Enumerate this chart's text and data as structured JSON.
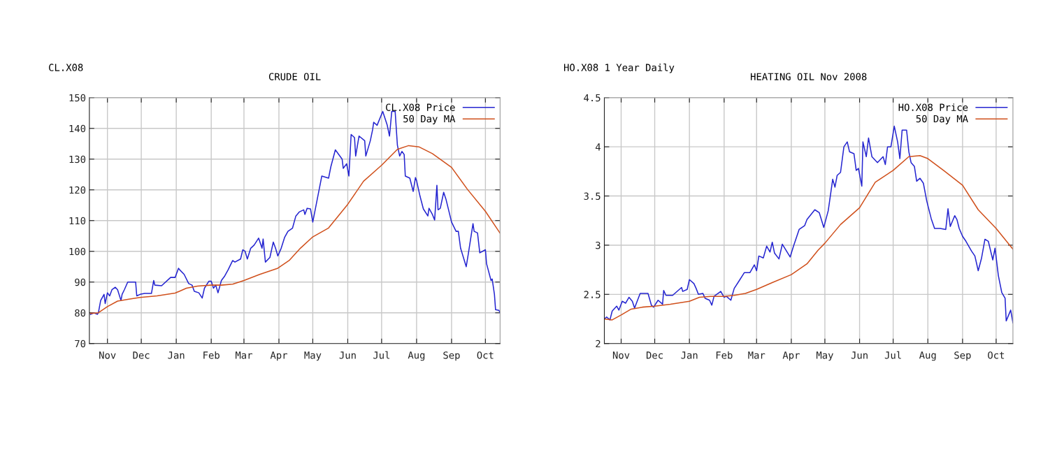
{
  "chart_data": [
    {
      "type": "line",
      "title": "CRUDE OIL",
      "annotations": [
        "CL.X08"
      ],
      "xlim": [
        "2007-10-16",
        "2008-10-14"
      ],
      "ylim": [
        70,
        150
      ],
      "yticks": [
        70,
        80,
        90,
        100,
        110,
        120,
        130,
        140,
        150
      ],
      "xticks": [
        {
          "value": "2007-11-01",
          "label": "Nov"
        },
        {
          "value": "2007-12-01",
          "label": "Dec"
        },
        {
          "value": "2008-01-01",
          "label": "Jan"
        },
        {
          "value": "2008-02-01",
          "label": "Feb"
        },
        {
          "value": "2008-03-01",
          "label": "Mar"
        },
        {
          "value": "2008-04-01",
          "label": "Apr"
        },
        {
          "value": "2008-05-01",
          "label": "May"
        },
        {
          "value": "2008-06-01",
          "label": "Jun"
        },
        {
          "value": "2008-07-01",
          "label": "Jul"
        },
        {
          "value": "2008-08-01",
          "label": "Aug"
        },
        {
          "value": "2008-09-01",
          "label": "Sep"
        },
        {
          "value": "2008-10-01",
          "label": "Oct"
        }
      ],
      "grid": true,
      "legend": "top right",
      "series": [
        {
          "name": "CL.X08 Price",
          "color": "#2424d0",
          "x": [
            "2007-10-17",
            "2007-10-20",
            "2007-10-23",
            "2007-10-24",
            "2007-10-26",
            "2007-10-29",
            "2007-10-30",
            "2007-11-01",
            "2007-11-03",
            "2007-11-05",
            "2007-11-08",
            "2007-11-10",
            "2007-11-13",
            "2007-11-14",
            "2007-11-16",
            "2007-11-19",
            "2007-11-26",
            "2007-11-27",
            "2007-11-30",
            "2007-12-04",
            "2007-12-10",
            "2007-12-12",
            "2007-12-13",
            "2007-12-19",
            "2007-12-27",
            "2007-12-31",
            "2008-01-03",
            "2008-01-04",
            "2008-01-08",
            "2008-01-12",
            "2008-01-15",
            "2008-01-17",
            "2008-01-21",
            "2008-01-24",
            "2008-01-26",
            "2008-01-30",
            "2008-02-01",
            "2008-02-03",
            "2008-02-05",
            "2008-02-07",
            "2008-02-10",
            "2008-02-13",
            "2008-02-16",
            "2008-02-20",
            "2008-02-22",
            "2008-02-27",
            "2008-02-29",
            "2008-03-02",
            "2008-03-04",
            "2008-03-07",
            "2008-03-10",
            "2008-03-14",
            "2008-03-17",
            "2008-03-18",
            "2008-03-20",
            "2008-03-24",
            "2008-03-27",
            "2008-03-29",
            "2008-03-31",
            "2008-04-03",
            "2008-04-06",
            "2008-04-09",
            "2008-04-13",
            "2008-04-16",
            "2008-04-19",
            "2008-04-23",
            "2008-04-24",
            "2008-04-26",
            "2008-04-29",
            "2008-05-01",
            "2008-05-05",
            "2008-05-09",
            "2008-05-15",
            "2008-05-17",
            "2008-05-21",
            "2008-05-27",
            "2008-05-28",
            "2008-05-31",
            "2008-06-02",
            "2008-06-04",
            "2008-06-07",
            "2008-06-08",
            "2008-06-11",
            "2008-06-16",
            "2008-06-17",
            "2008-06-21",
            "2008-06-23",
            "2008-06-24",
            "2008-06-27",
            "2008-07-02",
            "2008-07-06",
            "2008-07-08",
            "2008-07-10",
            "2008-07-13",
            "2008-07-15",
            "2008-07-17",
            "2008-07-19",
            "2008-07-21",
            "2008-07-22",
            "2008-07-26",
            "2008-07-29",
            "2008-07-31",
            "2008-08-01",
            "2008-08-04",
            "2008-08-07",
            "2008-08-11",
            "2008-08-12",
            "2008-08-15",
            "2008-08-17",
            "2008-08-19",
            "2008-08-20",
            "2008-08-22",
            "2008-08-25",
            "2008-08-27",
            "2008-09-01",
            "2008-09-05",
            "2008-09-07",
            "2008-09-09",
            "2008-09-14",
            "2008-09-16",
            "2008-09-20",
            "2008-09-21",
            "2008-09-24",
            "2008-09-26",
            "2008-10-01",
            "2008-10-02",
            "2008-10-06",
            "2008-10-07",
            "2008-10-09",
            "2008-10-10",
            "2008-10-13",
            "2008-10-14"
          ],
          "values": [
            79.5,
            80,
            79.5,
            80,
            84,
            86,
            83,
            86.5,
            85.5,
            87.5,
            88.3,
            87.5,
            84,
            86,
            87.5,
            90,
            90,
            85.5,
            86,
            86.3,
            86.3,
            90.5,
            89,
            88.8,
            91.5,
            91.5,
            94.5,
            94,
            92.5,
            89.5,
            89,
            87,
            86.5,
            84.8,
            88,
            90.3,
            90.3,
            88,
            89,
            86.5,
            90.5,
            92,
            94,
            97,
            96.5,
            97.5,
            100.5,
            100,
            97.5,
            101,
            102,
            104.3,
            101,
            104,
            96.5,
            98,
            103,
            101,
            98.5,
            101,
            104.5,
            106.5,
            107.5,
            111.5,
            112.8,
            113.5,
            112,
            114,
            113.8,
            109.5,
            117,
            124.5,
            123.8,
            127.5,
            133,
            130,
            127,
            128.5,
            124.5,
            138,
            137,
            131,
            137.5,
            136,
            131,
            136,
            139.5,
            142,
            141,
            145.5,
            141,
            137.5,
            145.5,
            145.5,
            134.5,
            131,
            132.5,
            131.5,
            124.5,
            123.8,
            119.5,
            124,
            123,
            118,
            113.8,
            111.5,
            114,
            112,
            110.2,
            121.5,
            113.5,
            114,
            119.2,
            117,
            109.5,
            106.5,
            106.5,
            101,
            95,
            99.5,
            109,
            106.5,
            106,
            99.5,
            100.5,
            96,
            90.5,
            91,
            86,
            81,
            80.8,
            80
          ]
        },
        {
          "name": "50 Day MA",
          "color": "#d0501c",
          "x": [
            "2007-10-17",
            "2007-10-24",
            "2007-11-01",
            "2007-11-10",
            "2007-11-20",
            "2007-11-30",
            "2007-12-15",
            "2007-12-31",
            "2008-01-10",
            "2008-01-20",
            "2008-02-01",
            "2008-02-10",
            "2008-02-20",
            "2008-03-01",
            "2008-03-15",
            "2008-03-31",
            "2008-04-10",
            "2008-04-20",
            "2008-05-01",
            "2008-05-15",
            "2008-06-01",
            "2008-06-15",
            "2008-07-01",
            "2008-07-15",
            "2008-07-25",
            "2008-08-03",
            "2008-08-15",
            "2008-09-01",
            "2008-09-15",
            "2008-10-01",
            "2008-10-14"
          ],
          "values": [
            79.8,
            80,
            82,
            83.8,
            84.4,
            85,
            85.5,
            86.4,
            88,
            88.7,
            89,
            89,
            89.3,
            90.5,
            92.5,
            94.5,
            97,
            101,
            104.7,
            107.6,
            115.3,
            122.8,
            128,
            133.2,
            134.4,
            134,
            131.8,
            127.3,
            120.2,
            113,
            105.9
          ]
        }
      ]
    },
    {
      "type": "line",
      "title": "HEATING OIL Nov 2008",
      "annotations": [
        "HO.X08 1 Year Daily"
      ],
      "xlim": [
        "2007-10-17",
        "2008-10-16"
      ],
      "ylim": [
        2,
        4.5
      ],
      "yticks": [
        2,
        2.5,
        3,
        3.5,
        4,
        4.5
      ],
      "xticks": [
        {
          "value": "2007-11-01",
          "label": "Nov"
        },
        {
          "value": "2007-12-01",
          "label": "Dec"
        },
        {
          "value": "2008-01-01",
          "label": "Jan"
        },
        {
          "value": "2008-02-01",
          "label": "Feb"
        },
        {
          "value": "2008-03-01",
          "label": "Mar"
        },
        {
          "value": "2008-04-01",
          "label": "Apr"
        },
        {
          "value": "2008-05-01",
          "label": "May"
        },
        {
          "value": "2008-06-01",
          "label": "Jun"
        },
        {
          "value": "2008-07-01",
          "label": "Jul"
        },
        {
          "value": "2008-08-01",
          "label": "Aug"
        },
        {
          "value": "2008-09-01",
          "label": "Sep"
        },
        {
          "value": "2008-10-01",
          "label": "Oct"
        }
      ],
      "grid": true,
      "legend": "top right",
      "series": [
        {
          "name": "HO.X08 Price",
          "color": "#2424d0",
          "x": [
            "2007-10-17",
            "2007-10-19",
            "2007-10-22",
            "2007-10-24",
            "2007-10-28",
            "2007-10-30",
            "2007-11-02",
            "2007-11-05",
            "2007-11-08",
            "2007-11-11",
            "2007-11-13",
            "2007-11-15",
            "2007-11-18",
            "2007-11-25",
            "2007-11-28",
            "2007-11-30",
            "2007-12-04",
            "2007-12-08",
            "2007-12-09",
            "2007-12-11",
            "2007-12-17",
            "2007-12-20",
            "2007-12-25",
            "2007-12-26",
            "2007-12-30",
            "2008-01-01",
            "2008-01-05",
            "2008-01-07",
            "2008-01-09",
            "2008-01-13",
            "2008-01-15",
            "2008-01-19",
            "2008-01-21",
            "2008-01-23",
            "2008-01-29",
            "2008-02-01",
            "2008-02-03",
            "2008-02-07",
            "2008-02-10",
            "2008-02-14",
            "2008-02-19",
            "2008-02-24",
            "2008-02-28",
            "2008-03-01",
            "2008-03-03",
            "2008-03-07",
            "2008-03-10",
            "2008-03-13",
            "2008-03-15",
            "2008-03-17",
            "2008-03-21",
            "2008-03-24",
            "2008-03-31",
            "2008-04-03",
            "2008-04-08",
            "2008-04-13",
            "2008-04-15",
            "2008-04-22",
            "2008-04-26",
            "2008-04-30",
            "2008-05-04",
            "2008-05-08",
            "2008-05-10",
            "2008-05-12",
            "2008-05-15",
            "2008-05-18",
            "2008-05-21",
            "2008-05-23",
            "2008-05-27",
            "2008-05-29",
            "2008-05-31",
            "2008-06-03",
            "2008-06-04",
            "2008-06-07",
            "2008-06-09",
            "2008-06-12",
            "2008-06-17",
            "2008-06-22",
            "2008-06-24",
            "2008-06-26",
            "2008-06-29",
            "2008-07-02",
            "2008-07-05",
            "2008-07-07",
            "2008-07-09",
            "2008-07-13",
            "2008-07-15",
            "2008-07-17",
            "2008-07-20",
            "2008-07-22",
            "2008-07-25",
            "2008-07-28",
            "2008-07-31",
            "2008-08-04",
            "2008-08-07",
            "2008-08-12",
            "2008-08-17",
            "2008-08-19",
            "2008-08-21",
            "2008-08-25",
            "2008-08-27",
            "2008-08-29",
            "2008-09-01",
            "2008-09-04",
            "2008-09-09",
            "2008-09-12",
            "2008-09-15",
            "2008-09-18",
            "2008-09-21",
            "2008-09-24",
            "2008-09-28",
            "2008-09-30",
            "2008-10-03",
            "2008-10-06",
            "2008-10-09",
            "2008-10-10",
            "2008-10-14",
            "2008-10-16"
          ],
          "values": [
            2.25,
            2.27,
            2.24,
            2.33,
            2.38,
            2.34,
            2.43,
            2.41,
            2.47,
            2.43,
            2.36,
            2.42,
            2.51,
            2.51,
            2.39,
            2.37,
            2.44,
            2.4,
            2.54,
            2.49,
            2.49,
            2.52,
            2.57,
            2.53,
            2.55,
            2.65,
            2.61,
            2.56,
            2.5,
            2.51,
            2.46,
            2.44,
            2.39,
            2.48,
            2.53,
            2.47,
            2.48,
            2.44,
            2.56,
            2.63,
            2.72,
            2.72,
            2.8,
            2.74,
            2.89,
            2.87,
            2.99,
            2.93,
            3.03,
            2.92,
            2.86,
            3.01,
            2.88,
            2.99,
            3.16,
            3.2,
            3.26,
            3.36,
            3.33,
            3.18,
            3.35,
            3.67,
            3.59,
            3.71,
            3.74,
            4.0,
            4.05,
            3.95,
            3.93,
            3.76,
            3.78,
            3.6,
            4.05,
            3.9,
            4.09,
            3.9,
            3.84,
            3.9,
            3.82,
            4.0,
            4.0,
            4.21,
            4.05,
            3.88,
            4.17,
            4.17,
            3.95,
            3.84,
            3.8,
            3.65,
            3.68,
            3.63,
            3.45,
            3.27,
            3.17,
            3.17,
            3.16,
            3.37,
            3.19,
            3.3,
            3.26,
            3.17,
            3.09,
            3.04,
            2.94,
            2.89,
            2.74,
            2.87,
            3.06,
            3.04,
            2.85,
            2.97,
            2.69,
            2.52,
            2.46,
            2.23,
            2.34,
            2.21
          ]
        },
        {
          "name": "50 Day MA",
          "color": "#d0501c",
          "x": [
            "2007-10-17",
            "2007-10-24",
            "2007-11-01",
            "2007-11-10",
            "2007-11-20",
            "2007-12-01",
            "2007-12-15",
            "2008-01-01",
            "2008-01-10",
            "2008-01-20",
            "2008-02-01",
            "2008-02-10",
            "2008-02-20",
            "2008-03-01",
            "2008-03-15",
            "2008-04-01",
            "2008-04-15",
            "2008-04-25",
            "2008-05-01",
            "2008-05-15",
            "2008-06-01",
            "2008-06-15",
            "2008-07-01",
            "2008-07-15",
            "2008-07-25",
            "2008-08-01",
            "2008-08-15",
            "2008-09-01",
            "2008-09-15",
            "2008-10-01",
            "2008-10-16"
          ],
          "values": [
            2.25,
            2.24,
            2.29,
            2.35,
            2.37,
            2.38,
            2.4,
            2.43,
            2.47,
            2.48,
            2.48,
            2.49,
            2.51,
            2.55,
            2.62,
            2.7,
            2.81,
            2.95,
            3.02,
            3.21,
            3.38,
            3.64,
            3.76,
            3.9,
            3.91,
            3.88,
            3.76,
            3.61,
            3.36,
            3.17,
            2.96
          ]
        }
      ]
    }
  ]
}
